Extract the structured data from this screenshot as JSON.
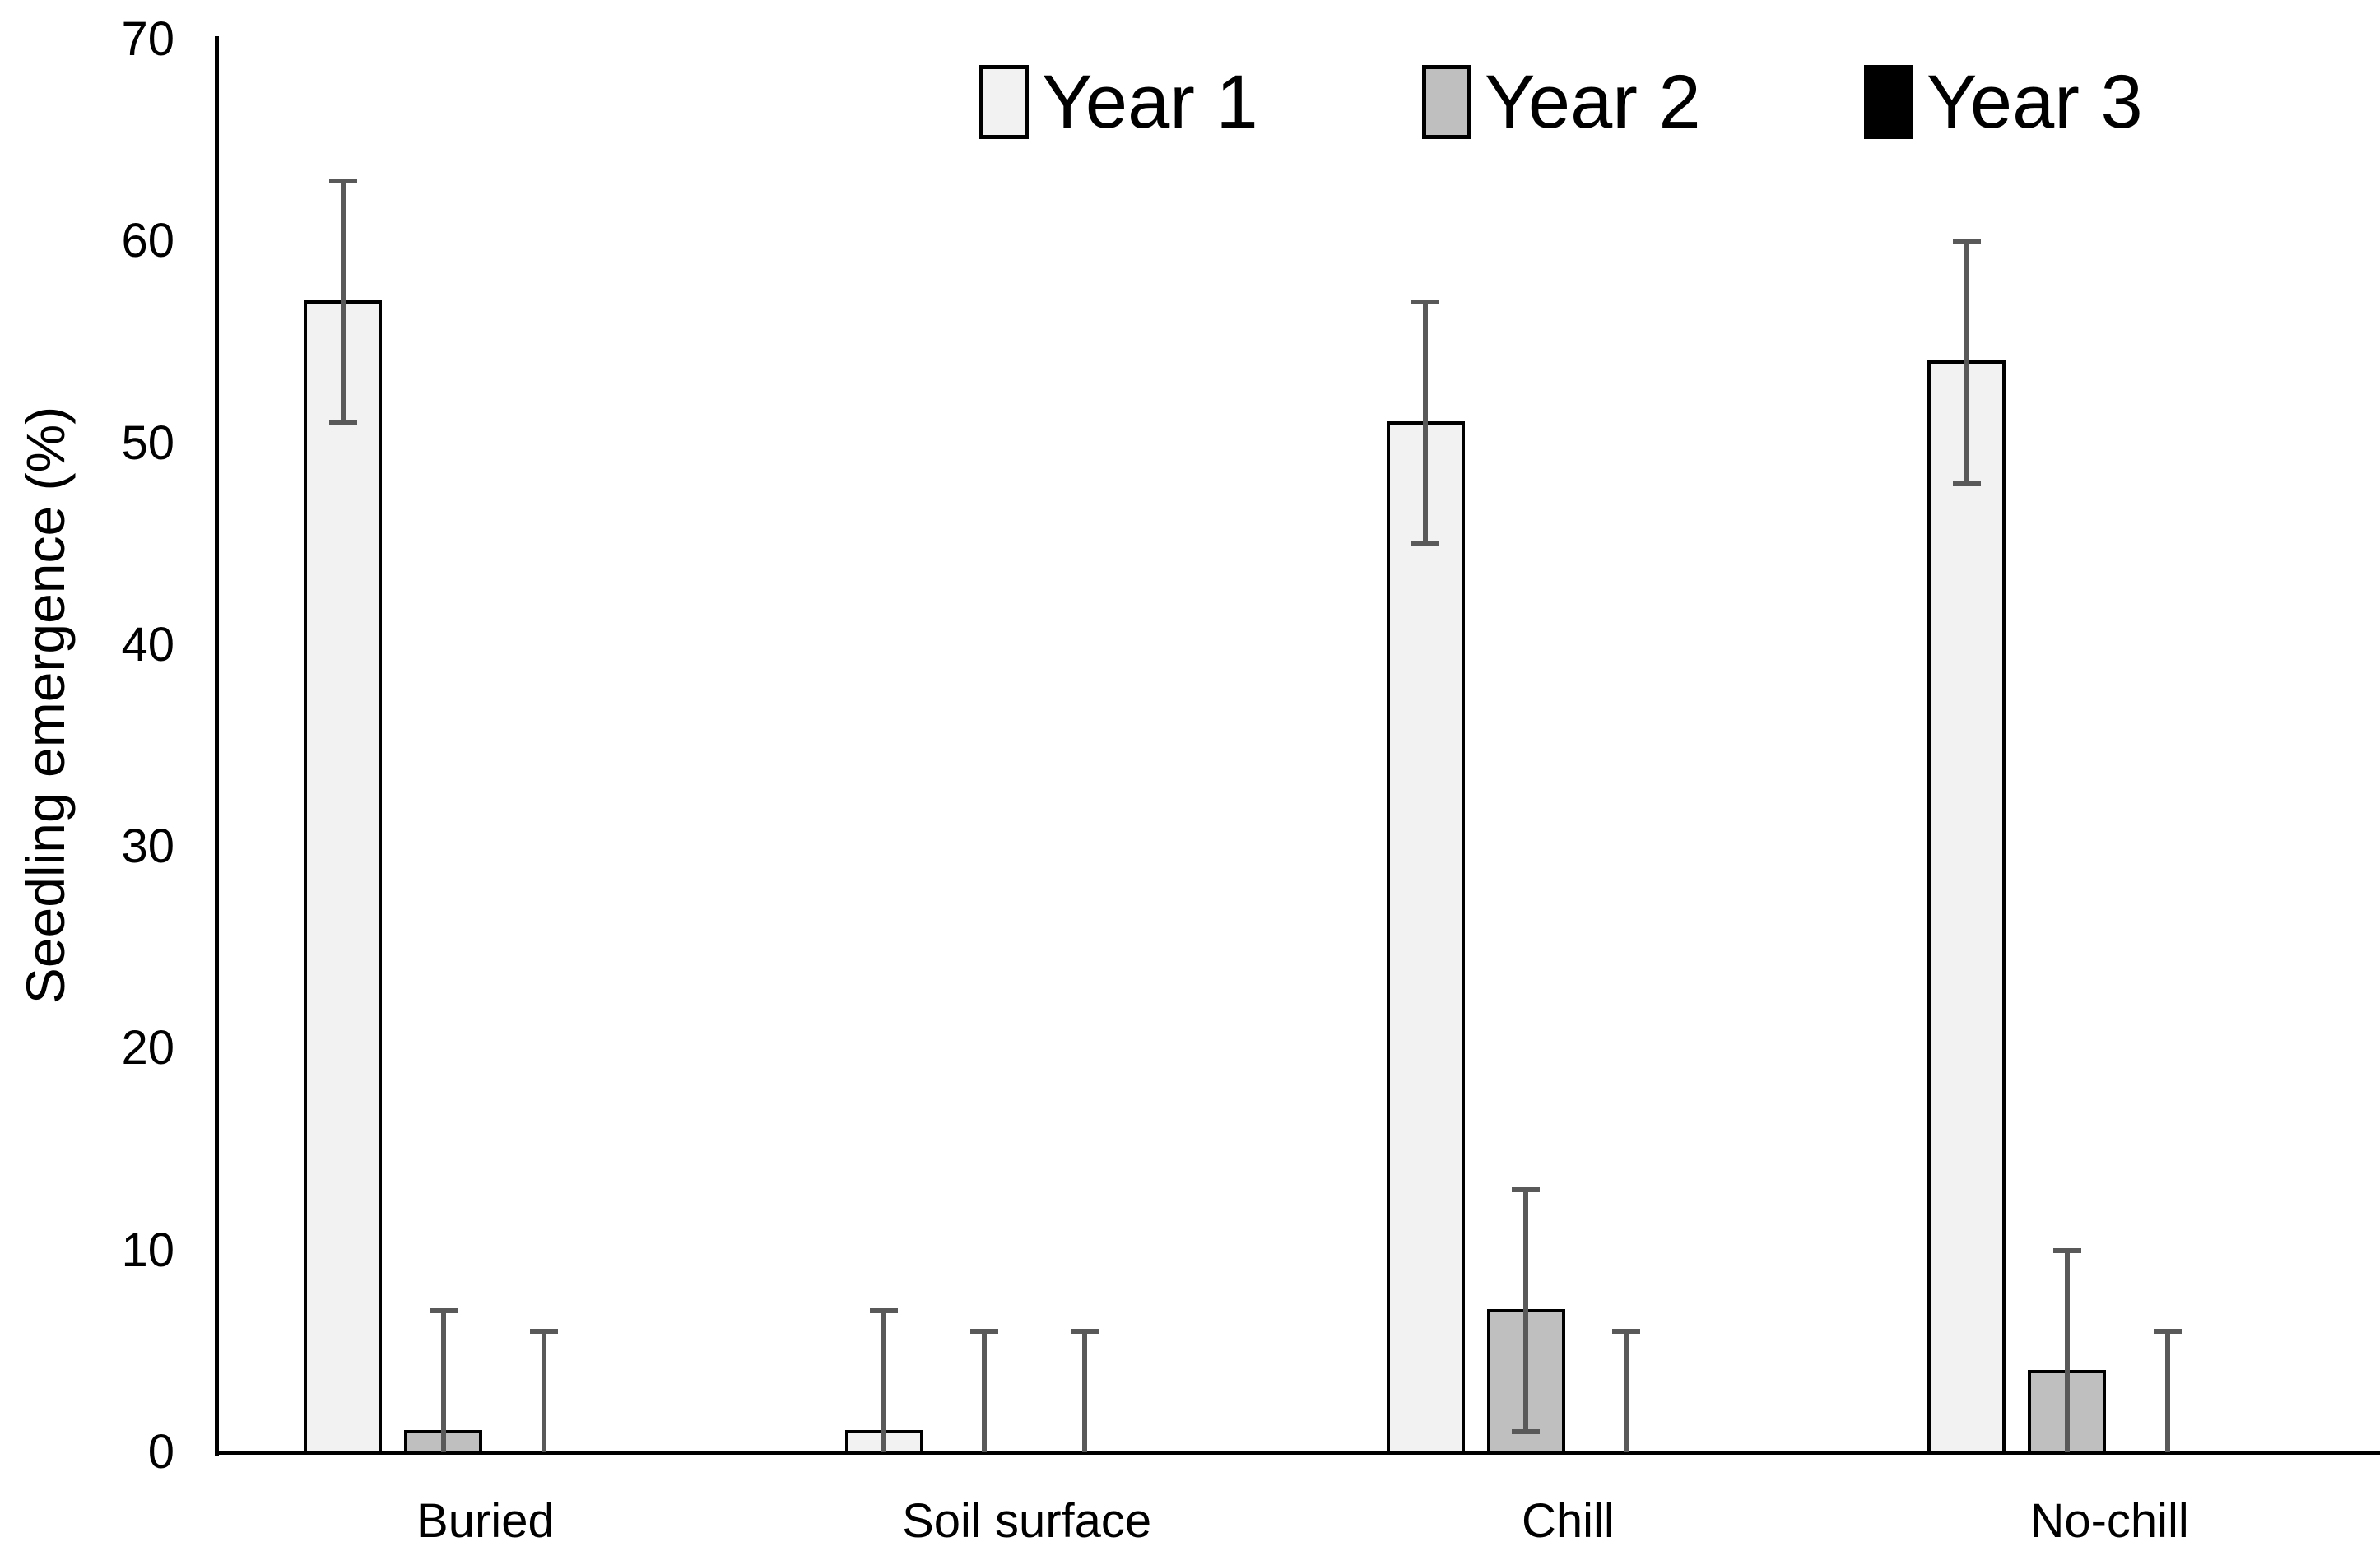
{
  "chart_data": {
    "type": "bar",
    "title": "",
    "ylabel": "Seedling emergence (%)",
    "xlabel": "",
    "ylim": [
      0,
      70
    ],
    "yticks": [
      0,
      10,
      20,
      30,
      40,
      50,
      60,
      70
    ],
    "grid": false,
    "legend_position": "top",
    "categories": [
      "Buried",
      "Soil surface",
      "Chill",
      "No-chill"
    ],
    "series": [
      {
        "name": "Year 1",
        "fill": "#f2f2f2",
        "values": [
          57,
          1,
          51,
          54
        ],
        "errors": [
          6,
          6,
          6,
          6
        ]
      },
      {
        "name": "Year 2",
        "fill": "#bfbfbf",
        "values": [
          1,
          0,
          7,
          4
        ],
        "errors": [
          6,
          6,
          6,
          6
        ]
      },
      {
        "name": "Year 3",
        "fill": "#000000",
        "values": [
          0,
          0,
          0,
          0
        ],
        "errors": [
          6,
          6,
          6,
          6
        ]
      }
    ],
    "colors": {
      "error_bar": "#595959",
      "axis": "#000000",
      "bar_border": "#000000",
      "text": "#000000",
      "background": "#ffffff"
    }
  }
}
